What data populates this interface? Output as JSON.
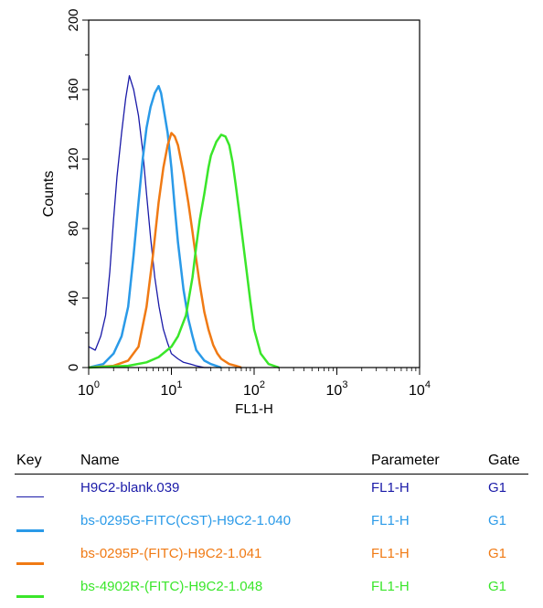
{
  "chart_data": {
    "type": "line",
    "title": "",
    "xlabel": "FL1-H",
    "ylabel": "Counts",
    "xscale": "log",
    "xlim": [
      1,
      10000
    ],
    "ylim": [
      0,
      200
    ],
    "x_ticks": [
      {
        "base": "10",
        "exp": "0",
        "value": 1
      },
      {
        "base": "10",
        "exp": "1",
        "value": 10
      },
      {
        "base": "10",
        "exp": "2",
        "value": 100
      },
      {
        "base": "10",
        "exp": "3",
        "value": 1000
      },
      {
        "base": "10",
        "exp": "4",
        "value": 10000
      }
    ],
    "y_ticks": [
      "0",
      "40",
      "80",
      "120",
      "160",
      "200"
    ],
    "y_tick_values": [
      0,
      40,
      80,
      120,
      160,
      200
    ],
    "grid": false,
    "series": [
      {
        "name": "H9C2-blank.039",
        "color": "#1a1aa8",
        "stroke": 1.3,
        "x": [
          1,
          1.2,
          1.4,
          1.6,
          1.8,
          2.0,
          2.2,
          2.5,
          2.8,
          3.1,
          3.5,
          4.0,
          4.5,
          5.0,
          5.6,
          6.3,
          7.1,
          8.0,
          9.0,
          10,
          12,
          14,
          17,
          20,
          25,
          30
        ],
        "y": [
          12,
          10,
          18,
          30,
          55,
          85,
          110,
          135,
          155,
          168,
          160,
          145,
          125,
          100,
          75,
          52,
          35,
          22,
          14,
          8,
          5,
          3,
          2,
          1,
          0,
          0
        ]
      },
      {
        "name": "bs-0295G-FITC(CST)-H9C2-1.040",
        "color": "#2a9ae8",
        "stroke": 2.5,
        "x": [
          1,
          1.5,
          2.0,
          2.5,
          3.0,
          3.5,
          4.0,
          4.5,
          5.0,
          5.6,
          6.3,
          7.0,
          7.5,
          8.0,
          9.0,
          10,
          11,
          12,
          14,
          16,
          18,
          20,
          25,
          30,
          40
        ],
        "y": [
          0,
          2,
          8,
          18,
          35,
          65,
          95,
          120,
          138,
          150,
          158,
          162,
          158,
          150,
          135,
          115,
          92,
          72,
          45,
          28,
          18,
          10,
          4,
          2,
          0
        ]
      },
      {
        "name": "bs-0295P-(FITC)-H9C2-1.041",
        "color": "#f07a14",
        "stroke": 2.5,
        "x": [
          1,
          2,
          3,
          4,
          5,
          6,
          7,
          8,
          9,
          10,
          11,
          12,
          14,
          16,
          18,
          20,
          22,
          25,
          28,
          32,
          36,
          40,
          50,
          60,
          70
        ],
        "y": [
          0,
          1,
          4,
          12,
          35,
          65,
          95,
          115,
          128,
          135,
          133,
          128,
          112,
          95,
          78,
          62,
          48,
          32,
          22,
          13,
          8,
          5,
          2,
          1,
          0
        ]
      },
      {
        "name": "bs-4902R-(FITC)-H9C2-1.048",
        "color": "#3ae62a",
        "stroke": 2.5,
        "x": [
          1,
          3,
          5,
          7,
          10,
          12,
          15,
          18,
          20,
          22,
          25,
          28,
          30,
          35,
          40,
          45,
          50,
          55,
          60,
          65,
          70,
          80,
          90,
          100,
          120,
          150,
          200
        ],
        "y": [
          0,
          1,
          3,
          6,
          12,
          18,
          30,
          52,
          70,
          85,
          100,
          115,
          122,
          130,
          134,
          133,
          128,
          118,
          105,
          92,
          80,
          58,
          38,
          22,
          8,
          2,
          0
        ]
      }
    ]
  },
  "key": {
    "headers": {
      "key": "Key",
      "name": "Name",
      "parameter": "Parameter",
      "gate": "Gate"
    },
    "rows": [
      {
        "name": "H9C2-blank.039",
        "parameter": "FL1-H",
        "gate": "G1",
        "color": "#1a1aa8",
        "stroke": 1
      },
      {
        "name": "bs-0295G-FITC(CST)-H9C2-1.040",
        "parameter": "FL1-H",
        "gate": "G1",
        "color": "#2a9ae8",
        "stroke": 3
      },
      {
        "name": "bs-0295P-(FITC)-H9C2-1.041",
        "parameter": "FL1-H",
        "gate": "G1",
        "color": "#f07a14",
        "stroke": 3
      },
      {
        "name": "bs-4902R-(FITC)-H9C2-1.048",
        "parameter": "FL1-H",
        "gate": "G1",
        "color": "#3ae62a",
        "stroke": 3
      }
    ]
  }
}
